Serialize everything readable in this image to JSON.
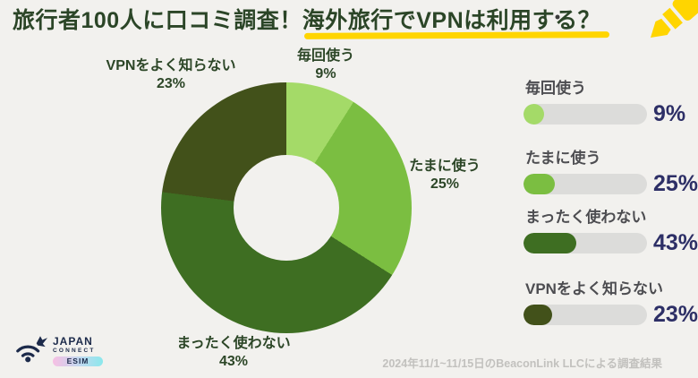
{
  "title": {
    "part1": "旅行者100人に口コミ調査！",
    "part2": "海外旅行でVPNは利用する？"
  },
  "chart_data": {
    "type": "pie",
    "donut": true,
    "title": "旅行者100人に口コミ調査！海外旅行でVPNは利用する？",
    "categories": [
      "毎回使う",
      "たまに使う",
      "まったく使わない",
      "VPNをよく知らない"
    ],
    "values": [
      9,
      25,
      43,
      23
    ],
    "value_labels": [
      "9%",
      "25%",
      "43%",
      "23%"
    ],
    "unit": "%",
    "colors": [
      "#A4DA68",
      "#7BBE41",
      "#3E6E22",
      "#42511A"
    ],
    "start_angle": "top",
    "direction": "clockwise",
    "hole_ratio": 0.42,
    "legend_position": "right",
    "sample_size": 100
  },
  "footer": {
    "source_note": "2024年11/1~11/15日のBeaconLink LLCによる調査結果"
  },
  "logo": {
    "line1": "JAPAN",
    "line2": "CONNECT",
    "line3": "ESIM"
  },
  "icons": {
    "header_decoration": "highlighter-pen-icon",
    "logo_mark": "wifi-bird-icon"
  },
  "colors": {
    "background": "#F2F1EE",
    "title_text": "#2B4527",
    "callout_text": "#2C4627",
    "legend_label_text": "#4D4D51",
    "percent_text": "#2D2F66",
    "bar_track": "#DCDCDA",
    "highlight_yellow": "#FFD500",
    "logo_navy": "#1C2A4A"
  }
}
